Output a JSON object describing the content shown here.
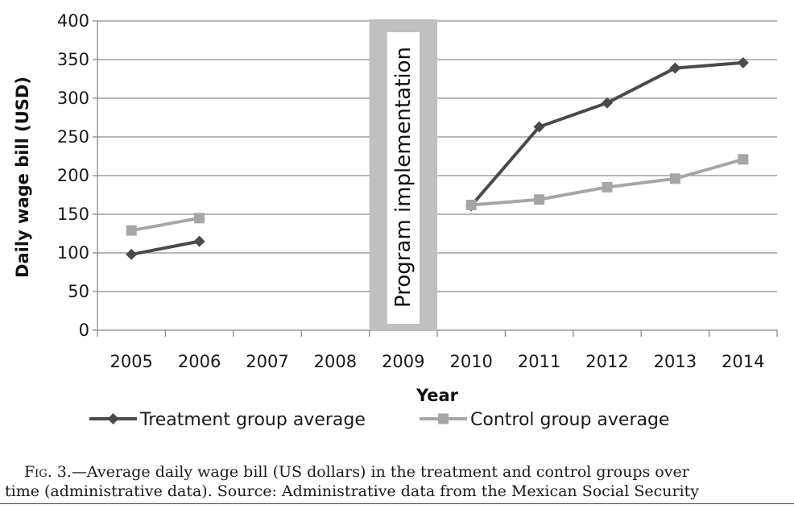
{
  "chart_data": {
    "type": "line",
    "title": "",
    "xlabel": "Year",
    "ylabel": "Daily wage bill (USD)",
    "categories": [
      "2005",
      "2006",
      "2007",
      "2008",
      "2009",
      "2010",
      "2011",
      "2012",
      "2013",
      "2014"
    ],
    "ylim": [
      0,
      400
    ],
    "yticks": [
      "0",
      "50",
      "100",
      "150",
      "200",
      "250",
      "300",
      "350",
      "400"
    ],
    "grid": true,
    "legend_position": "bottom",
    "series": [
      {
        "name": "Treatment group average",
        "color": "#4a4a4a",
        "marker": "diamond",
        "values": [
          98,
          115,
          null,
          null,
          null,
          161,
          263,
          294,
          339,
          346
        ]
      },
      {
        "name": "Control group average",
        "color": "#a6a6a6",
        "marker": "square",
        "values": [
          129,
          145,
          null,
          null,
          null,
          162,
          169,
          185,
          196,
          221
        ]
      }
    ],
    "annotations": [
      {
        "text": "Program implementation",
        "category": "2009"
      }
    ]
  },
  "caption": {
    "label": "Fig. 3.",
    "line1": "—Average daily wage bill (US dollars) in the treatment and control groups over",
    "line2": "time (administrative data). Source: Administrative data from the Mexican Social Security"
  }
}
